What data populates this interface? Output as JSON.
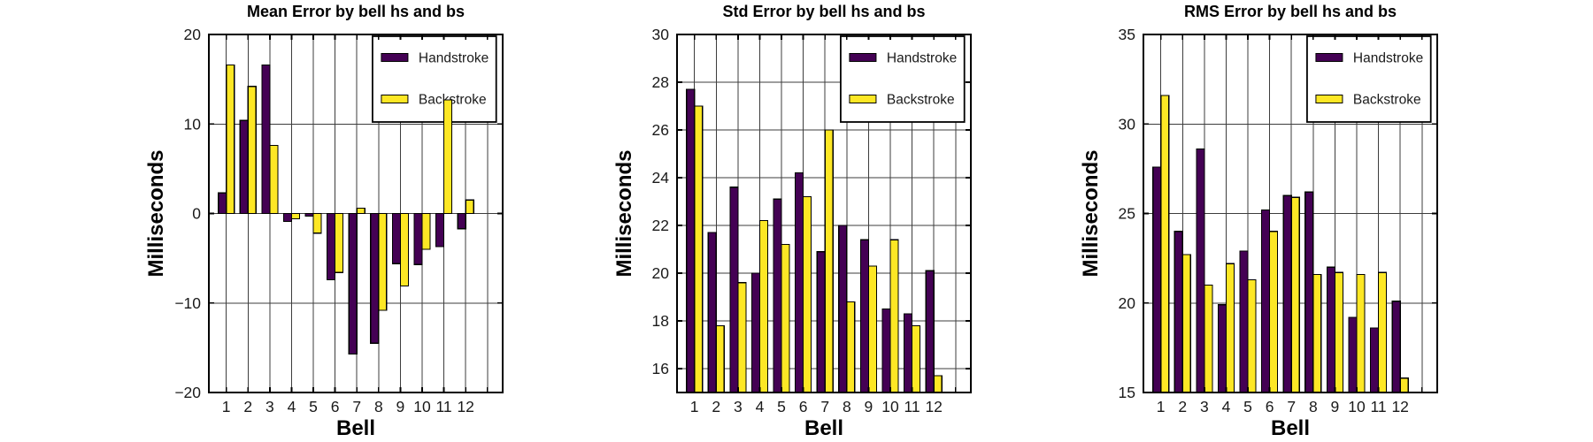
{
  "figure": {
    "background": "#ffffff",
    "text_color": "#1a1a1a",
    "frame_color": "#000000",
    "grid_color": "#3d3d3d"
  },
  "legend": {
    "position": "top-right",
    "items": [
      {
        "label": "Handstroke",
        "color": "#440154"
      },
      {
        "label": "Backstroke",
        "color": "#FDE725"
      }
    ]
  },
  "chart_data": [
    {
      "type": "bar",
      "title": "Mean Error by bell hs and bs",
      "xlabel": "Bell",
      "ylabel": "Milliseconds",
      "categories": [
        "1",
        "2",
        "3",
        "4",
        "5",
        "6",
        "7",
        "8",
        "9",
        "10",
        "11",
        "12"
      ],
      "series": [
        {
          "name": "Handstroke",
          "color": "#440154",
          "values": [
            2.3,
            10.4,
            16.6,
            -0.9,
            -0.3,
            -7.4,
            -15.7,
            -14.5,
            -5.6,
            -5.7,
            -3.7,
            -1.7
          ]
        },
        {
          "name": "Backstroke",
          "color": "#FDE725",
          "values": [
            16.6,
            14.2,
            7.6,
            -0.6,
            -2.2,
            -6.6,
            0.6,
            -10.8,
            -8.1,
            -4.0,
            12.7,
            1.5
          ]
        }
      ],
      "ylim": [
        -20,
        20
      ],
      "yticks": [
        -20,
        -10,
        0,
        10,
        20
      ],
      "baseline": 0,
      "grid": true,
      "legend_position": "top-right"
    },
    {
      "type": "bar",
      "title": "Std Error by bell hs and bs",
      "xlabel": "Bell",
      "ylabel": "Milliseconds",
      "categories": [
        "1",
        "2",
        "3",
        "4",
        "5",
        "6",
        "7",
        "8",
        "9",
        "10",
        "11",
        "12"
      ],
      "series": [
        {
          "name": "Handstroke",
          "color": "#440154",
          "values": [
            27.7,
            21.7,
            23.6,
            20.0,
            23.1,
            24.2,
            20.9,
            22.0,
            21.4,
            18.5,
            18.3,
            20.1
          ]
        },
        {
          "name": "Backstroke",
          "color": "#FDE725",
          "values": [
            27.0,
            17.8,
            19.6,
            22.2,
            21.2,
            23.2,
            26.0,
            18.8,
            20.3,
            21.4,
            17.8,
            15.7
          ]
        }
      ],
      "ylim": [
        15,
        30
      ],
      "yticks": [
        16,
        18,
        20,
        22,
        24,
        26,
        28,
        30
      ],
      "baseline": 15,
      "grid": true,
      "legend_position": "top-right"
    },
    {
      "type": "bar",
      "title": "RMS Error by bell hs and bs",
      "xlabel": "Bell",
      "ylabel": "Milliseconds",
      "categories": [
        "1",
        "2",
        "3",
        "4",
        "5",
        "6",
        "7",
        "8",
        "9",
        "10",
        "11",
        "12"
      ],
      "series": [
        {
          "name": "Handstroke",
          "color": "#440154",
          "values": [
            27.6,
            24.0,
            28.6,
            19.9,
            22.9,
            25.2,
            26.0,
            26.2,
            22.0,
            19.2,
            18.6,
            20.1
          ]
        },
        {
          "name": "Backstroke",
          "color": "#FDE725",
          "values": [
            31.6,
            22.7,
            21.0,
            22.2,
            21.3,
            24.0,
            25.9,
            21.6,
            21.7,
            21.6,
            21.7,
            15.8
          ]
        }
      ],
      "ylim": [
        15,
        35
      ],
      "yticks": [
        15,
        20,
        25,
        30,
        35
      ],
      "baseline": 15,
      "grid": true,
      "legend_position": "top-right"
    }
  ]
}
